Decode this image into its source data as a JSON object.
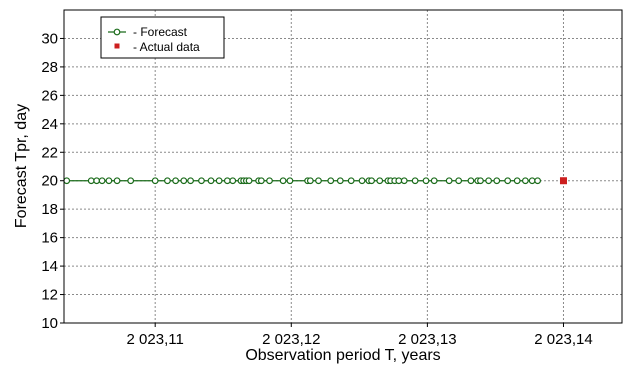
{
  "chart_data": {
    "type": "line",
    "title": "",
    "xlabel": "Observation period T, years",
    "ylabel": "Forecast Tpr, day",
    "xlim": [
      2023.1033,
      2023.1443
    ],
    "ylim": [
      10,
      32
    ],
    "x_ticks": [
      {
        "value": 2023.11,
        "label": "2 023,11"
      },
      {
        "value": 2023.12,
        "label": "2 023,12"
      },
      {
        "value": 2023.13,
        "label": "2 023,13"
      },
      {
        "value": 2023.14,
        "label": "2 023,14"
      }
    ],
    "y_ticks": [
      {
        "value": 10,
        "label": "10"
      },
      {
        "value": 12,
        "label": "12"
      },
      {
        "value": 14,
        "label": "14"
      },
      {
        "value": 16,
        "label": "16"
      },
      {
        "value": 18,
        "label": "18"
      },
      {
        "value": 20,
        "label": "20"
      },
      {
        "value": 22,
        "label": "22"
      },
      {
        "value": 24,
        "label": "24"
      },
      {
        "value": 26,
        "label": "26"
      },
      {
        "value": 28,
        "label": "28"
      },
      {
        "value": 30,
        "label": "30"
      }
    ],
    "grid": true,
    "legend_position": "top-left",
    "series": [
      {
        "name": "- Forecast",
        "marker": "hollow-circle",
        "color": "#1a6b1a",
        "x": [
          2023.1035,
          2023.1053,
          2023.1057,
          2023.1061,
          2023.1066,
          2023.1072,
          2023.1082,
          2023.11,
          2023.1109,
          2023.1115,
          2023.1121,
          2023.1126,
          2023.1134,
          2023.1141,
          2023.1147,
          2023.1153,
          2023.1157,
          2023.1163,
          2023.1165,
          2023.1167,
          2023.1169,
          2023.1176,
          2023.1178,
          2023.1184,
          2023.1194,
          2023.1199,
          2023.1212,
          2023.1214,
          2023.122,
          2023.1229,
          2023.1236,
          2023.1244,
          2023.1252,
          2023.1257,
          2023.1259,
          2023.1265,
          2023.1271,
          2023.1273,
          2023.1276,
          2023.1279,
          2023.1283,
          2023.1291,
          2023.1299,
          2023.1305,
          2023.1316,
          2023.1323,
          2023.1332,
          2023.1337,
          2023.1339,
          2023.1345,
          2023.1351,
          2023.1359,
          2023.1366,
          2023.1372,
          2023.1377,
          2023.1381
        ],
        "y": [
          20,
          20,
          20,
          20,
          20,
          20,
          20,
          20,
          20,
          20,
          20,
          20,
          20,
          20,
          20,
          20,
          20,
          20,
          20,
          20,
          20,
          20,
          20,
          20,
          20,
          20,
          20,
          20,
          20,
          20,
          20,
          20,
          20,
          20,
          20,
          20,
          20,
          20,
          20,
          20,
          20,
          20,
          20,
          20,
          20,
          20,
          20,
          20,
          20,
          20,
          20,
          20,
          20,
          20,
          20,
          20
        ]
      },
      {
        "name": "- Actual data",
        "marker": "filled-square",
        "color": "#cc1f1f",
        "x": [
          2023.14
        ],
        "y": [
          20
        ]
      }
    ]
  }
}
